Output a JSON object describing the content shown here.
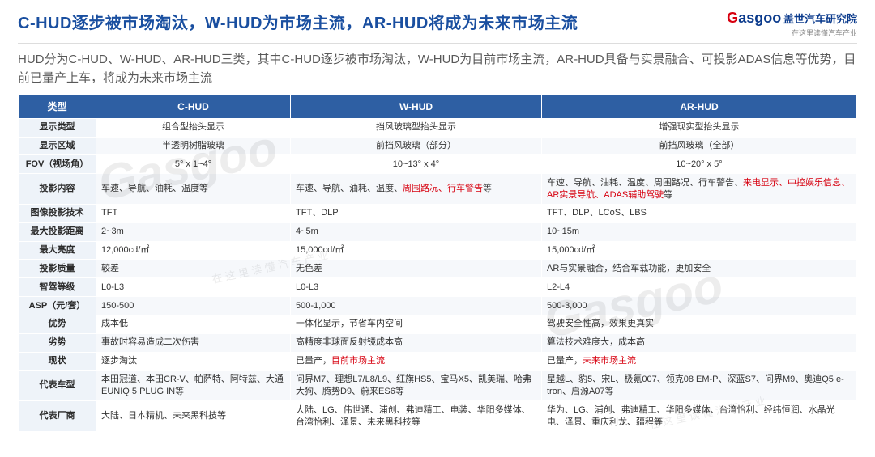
{
  "header": {
    "title": "C-HUD逐步被市场淘汰，W-HUD为市场主流，AR-HUD将成为未来市场主流",
    "title_color": "#1a4fa0",
    "logo_brand_red": "G",
    "logo_brand_rest": "asgoo",
    "logo_cn": "盖世汽车研究院",
    "logo_tag": "在这里读懂汽车产业"
  },
  "subtitle": "HUD分为C-HUD、W-HUD、AR-HUD三类，其中C-HUD逐步被市场淘汰，W-HUD为目前市场主流，AR-HUD具备与实景融合、可投影ADAS信息等优势，目前已量产上车，将成为未来市场主流",
  "table": {
    "header_bg": "#2e5fa3",
    "row_header_bg": "#eef3f9",
    "zebra_bg": "#f6f8fb",
    "border_color": "#ffffff",
    "highlight_color": "#d7000f",
    "col_widths": [
      "96px",
      "240px",
      "310px",
      "auto"
    ],
    "columns": [
      "类型",
      "C-HUD",
      "W-HUD",
      "AR-HUD"
    ],
    "rows": [
      {
        "label": "显示类型",
        "center": true,
        "cells": [
          "组合型抬头显示",
          "挡风玻璃型抬头显示",
          "增强现实型抬头显示"
        ]
      },
      {
        "label": "显示区域",
        "center": true,
        "cells": [
          "半透明树脂玻璃",
          "前挡风玻璃（部分）",
          "前挡风玻璃（全部）"
        ]
      },
      {
        "label": "FOV（视场角）",
        "center": true,
        "cells": [
          "5° x 1~4°",
          "10~13° x 4°",
          "10~20° x 5°"
        ]
      },
      {
        "label": "投影内容",
        "center": false,
        "cells": [
          "车速、导航、油耗、温度等",
          "车速、导航、油耗、温度、<span class=\"hl\">周围路况、行车警告</span>等",
          "车速、导航、油耗、温度、周围路况、行车警告、<span class=\"hl\">来电显示、中控娱乐信息、AR实景导航、ADAS辅助驾驶</span>等"
        ]
      },
      {
        "label": "图像投影技术",
        "center": false,
        "cells": [
          "TFT",
          "TFT、DLP",
          "TFT、DLP、LCoS、LBS"
        ]
      },
      {
        "label": "最大投影距离",
        "center": false,
        "cells": [
          "2~3m",
          "4~5m",
          "10~15m"
        ]
      },
      {
        "label": "最大亮度",
        "center": false,
        "cells": [
          "12,000cd/㎡",
          "15,000cd/㎡",
          "15,000cd/㎡"
        ]
      },
      {
        "label": "投影质量",
        "center": false,
        "cells": [
          "较差",
          "无色差",
          "AR与实景融合，结合车载功能，更加安全"
        ]
      },
      {
        "label": "智驾等级",
        "center": false,
        "cells": [
          "L0-L3",
          "L0-L3",
          "L2-L4"
        ]
      },
      {
        "label": "ASP（元/套）",
        "center": false,
        "cells": [
          "150-500",
          "500-1,000",
          "500-3,000"
        ]
      },
      {
        "label": "优势",
        "center": false,
        "cells": [
          "成本低",
          "一体化显示，节省车内空间",
          "驾驶安全性高，效果更真实"
        ]
      },
      {
        "label": "劣势",
        "center": false,
        "cells": [
          "事故时容易造成二次伤害",
          "高精度非球面反射镜成本高",
          "算法技术难度大，成本高"
        ]
      },
      {
        "label": "现状",
        "center": false,
        "cells": [
          "逐步淘汰",
          "已量产，<span class=\"hl\">目前市场主流</span>",
          "已量产，<span class=\"hl\">未来市场主流</span>"
        ]
      },
      {
        "label": "代表车型",
        "center": false,
        "cells": [
          "本田冠道、本田CR-V、帕萨特、阿特兹、大通EUNIQ 5 PLUG IN等",
          "问界M7、理想L7/L8/L9、红旗HS5、宝马X5、凯美瑞、哈弗大狗、腾势D9、蔚来ES6等",
          "星越L、豹5、宋L、极氪007、领克08 EM-P、深蓝S7、问界M9、奥迪Q5 e-tron、启源A07等"
        ]
      },
      {
        "label": "代表厂商",
        "center": false,
        "cells": [
          "大陆、日本精机、未来黑科技等",
          "大陆、LG、伟世通、浦创、弗迪精工、电装、华阳多媒体、台湾怡利、泽景、未来黑科技等",
          "华为、LG、浦创、弗迪精工、华阳多媒体、台湾怡利、经纬恒润、水晶光电、泽景、重庆利龙、疆程等"
        ]
      }
    ]
  },
  "watermark": {
    "text": "Gasgoo",
    "cn": "在 这 里 读 懂 汽 车 产 业"
  }
}
